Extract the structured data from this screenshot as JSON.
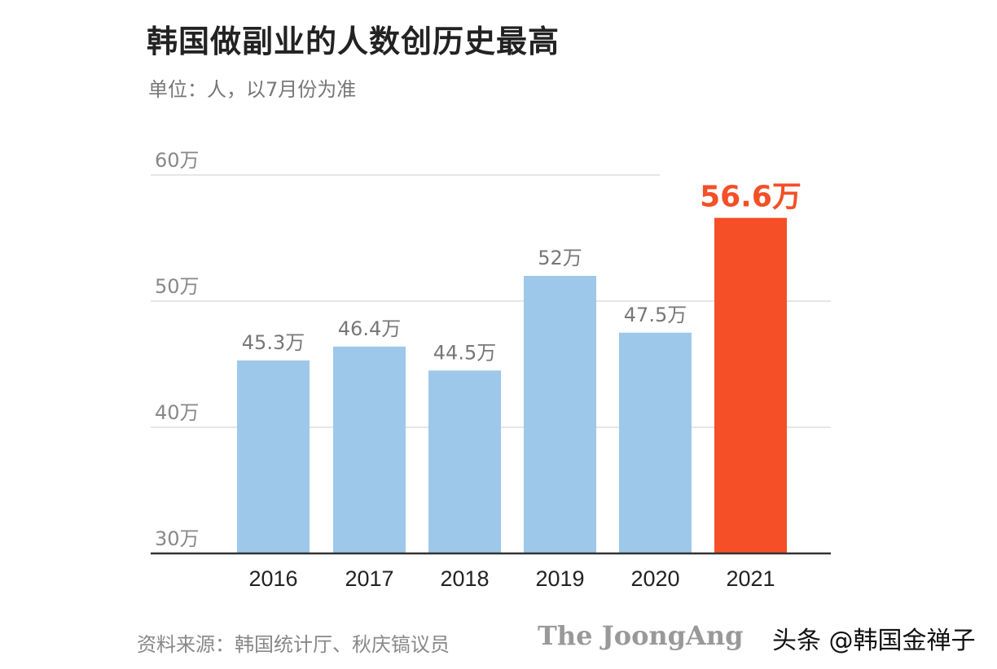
{
  "chart_data": {
    "type": "bar",
    "title": "韩国做副业的人数创历史最高",
    "subtitle": "单位：人，以7月份为准",
    "categories": [
      "2016",
      "2017",
      "2018",
      "2019",
      "2020",
      "2021"
    ],
    "values": [
      45.3,
      46.4,
      44.5,
      52,
      47.5,
      56.6
    ],
    "data_labels": [
      "45.3万",
      "46.4万",
      "44.5万",
      "52万",
      "47.5万",
      "56.6万"
    ],
    "yticks": [
      30,
      40,
      50,
      60
    ],
    "ytick_labels": [
      "30万",
      "40万",
      "50万",
      "60万"
    ],
    "ylim": [
      30,
      60
    ],
    "grid": true,
    "colors": {
      "default": "#9dc8ea",
      "highlight": "#f44f26",
      "highlight_index": 5
    },
    "source": "资料来源：韩国统计厅、秋庆镐议员"
  },
  "logo": "The JoongAng",
  "watermark": "头条 @韩国金禅子"
}
